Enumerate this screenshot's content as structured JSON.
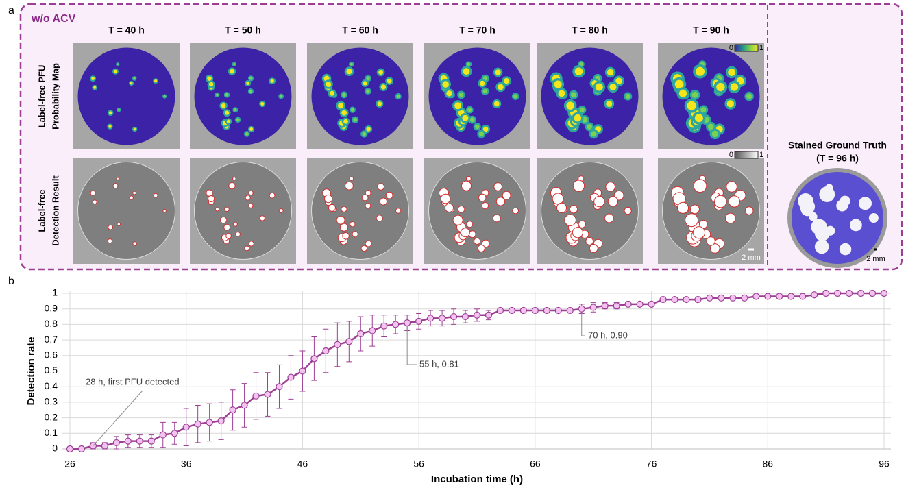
{
  "panel_a": {
    "label": "a",
    "condition": "w/o ACV",
    "times": [
      "T = 40 h",
      "T = 50 h",
      "T = 60 h",
      "T = 70 h",
      "T = 80 h",
      "T = 90 h"
    ],
    "row_labels": [
      [
        "Label-free PFU",
        "Probability Map"
      ],
      [
        "Label-free",
        "Detection Result"
      ]
    ],
    "colorbar_ticks": [
      [
        0,
        1
      ],
      [
        0,
        1
      ]
    ],
    "scale_bar": "2 mm",
    "ground_truth": {
      "title": [
        "Stained Ground Truth",
        "(T = 96 h)"
      ],
      "scale_bar": "2 mm"
    }
  },
  "panel_b_label": "b",
  "chart_data": {
    "type": "line",
    "xlabel": "Incubation time (h)",
    "ylabel": "Detection rate",
    "x": [
      26,
      27,
      28,
      29,
      30,
      31,
      32,
      33,
      34,
      35,
      36,
      37,
      38,
      39,
      40,
      41,
      42,
      43,
      44,
      45,
      46,
      47,
      48,
      49,
      50,
      51,
      52,
      53,
      54,
      55,
      56,
      57,
      58,
      59,
      60,
      61,
      62,
      63,
      64,
      65,
      66,
      67,
      68,
      69,
      70,
      71,
      72,
      73,
      74,
      75,
      76,
      77,
      78,
      79,
      80,
      81,
      82,
      83,
      84,
      85,
      86,
      87,
      88,
      89,
      90,
      91,
      92,
      93,
      94,
      95,
      96
    ],
    "series": [
      {
        "color": "#9c3f94",
        "marker_fill": "#f3c2ee",
        "values": [
          0,
          0,
          0.02,
          0.02,
          0.04,
          0.05,
          0.05,
          0.05,
          0.09,
          0.1,
          0.14,
          0.16,
          0.17,
          0.18,
          0.25,
          0.28,
          0.34,
          0.35,
          0.4,
          0.46,
          0.5,
          0.58,
          0.63,
          0.67,
          0.69,
          0.74,
          0.76,
          0.79,
          0.8,
          0.81,
          0.82,
          0.84,
          0.84,
          0.85,
          0.85,
          0.86,
          0.86,
          0.89,
          0.89,
          0.89,
          0.89,
          0.89,
          0.89,
          0.89,
          0.9,
          0.91,
          0.92,
          0.92,
          0.93,
          0.93,
          0.93,
          0.96,
          0.96,
          0.96,
          0.96,
          0.97,
          0.97,
          0.97,
          0.97,
          0.98,
          0.98,
          0.98,
          0.98,
          0.98,
          0.99,
          1,
          1,
          1,
          1,
          1,
          1
        ],
        "errors": [
          0,
          0,
          0.02,
          0.02,
          0.04,
          0.04,
          0.04,
          0.04,
          0.08,
          0.07,
          0.12,
          0.12,
          0.12,
          0.12,
          0.13,
          0.14,
          0.15,
          0.14,
          0.14,
          0.14,
          0.13,
          0.14,
          0.14,
          0.14,
          0.13,
          0.11,
          0.1,
          0.07,
          0.06,
          0.05,
          0.05,
          0.05,
          0.05,
          0.05,
          0.04,
          0.04,
          0.03,
          0.01,
          0.01,
          0.01,
          0.01,
          0.01,
          0.01,
          0.01,
          0.03,
          0.03,
          0.02,
          0.02,
          0.01,
          0.01,
          0.01,
          0.01,
          0.01,
          0.01,
          0.01,
          0.01,
          0.01,
          0.01,
          0.01,
          0.01,
          0.01,
          0.01,
          0.01,
          0.01,
          0,
          0,
          0,
          0,
          0,
          0,
          0
        ]
      }
    ],
    "xlim": [
      26,
      96
    ],
    "xticks": [
      26,
      36,
      46,
      56,
      66,
      76,
      86,
      96
    ],
    "ylim": [
      0,
      1
    ],
    "yticks": [
      0,
      0.1,
      0.2,
      0.3,
      0.4,
      0.5,
      0.6,
      0.7,
      0.8,
      0.9,
      1
    ],
    "grid": true,
    "annotations": [
      {
        "text": "28 h, first PFU detected",
        "x": 28
      },
      {
        "text": "55 h, 0.81",
        "x": 55
      },
      {
        "text": "70 h, 0.90",
        "x": 70
      }
    ]
  }
}
